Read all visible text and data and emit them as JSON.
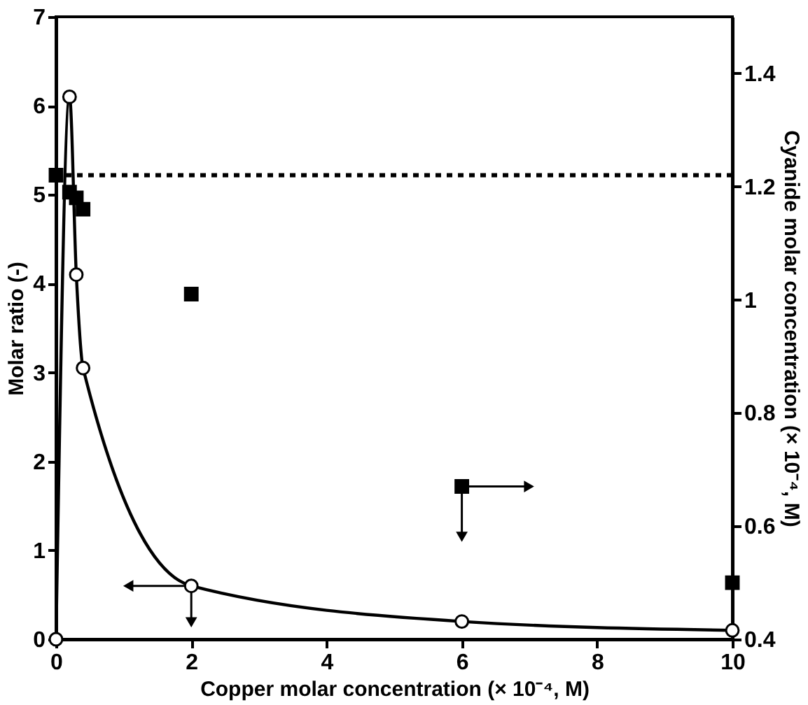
{
  "chart_data": {
    "type": "line",
    "xlabel": "Copper molar concentration (× 10⁻⁴, M)",
    "ylabel": "Molar ratio (-)",
    "y2label": "Cyanide molar concentration (× 10⁻⁴, M)",
    "xlim": [
      0,
      10
    ],
    "xticks": [
      0,
      2,
      4,
      6,
      8,
      10
    ],
    "ylim": [
      0,
      7
    ],
    "yticks": [
      0,
      1,
      2,
      3,
      4,
      5,
      6,
      7
    ],
    "y2lim": [
      0.4,
      1.5
    ],
    "y2ticks": [
      0.4,
      0.6,
      0.8,
      1,
      1.2,
      1.4
    ],
    "grid": false,
    "series": [
      {
        "marker": "circle",
        "line_style": "solid",
        "color": "#000000",
        "x": [
          0,
          0.2,
          0.3,
          0.4,
          2,
          6,
          10
        ],
        "values": [
          0,
          6.1,
          4.1,
          3.05,
          0.6,
          0.2,
          0.1
        ]
      },
      {
        "type": "scatter",
        "marker": "square",
        "axis": "y2",
        "color": "#000000",
        "x": [
          0,
          0.2,
          0.3,
          0.4,
          2,
          6,
          10
        ],
        "values": [
          1.22,
          1.19,
          1.18,
          1.16,
          1.01,
          0.67,
          0.5
        ]
      }
    ],
    "ref_lines": [
      {
        "axis": "y2",
        "value": 1.22,
        "line_style": "dotted",
        "color": "#000000"
      }
    ]
  }
}
